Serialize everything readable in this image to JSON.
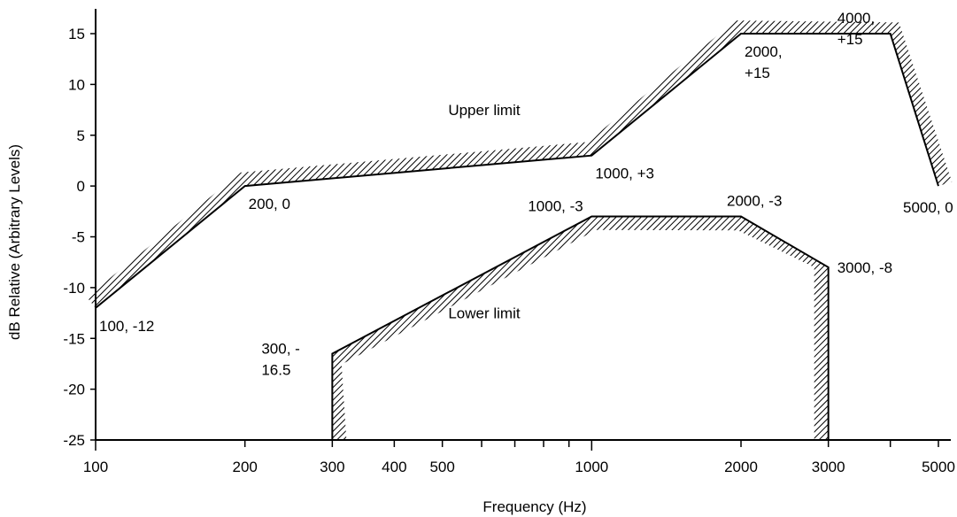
{
  "chart_data": {
    "type": "line",
    "title": "",
    "xlabel": "Frequency (Hz)",
    "ylabel": "dB Relative (Arbitrary Levels)",
    "x_scale": "log",
    "xlim": [
      100,
      5000
    ],
    "ylim": [
      -25,
      17
    ],
    "x_ticks": [
      100,
      200,
      300,
      400,
      500,
      600,
      700,
      800,
      900,
      1000,
      2000,
      3000,
      4000,
      5000
    ],
    "x_tick_labels": [
      {
        "value": 100,
        "label": "100"
      },
      {
        "value": 200,
        "label": "200"
      },
      {
        "value": 300,
        "label": "300"
      },
      {
        "value": 400,
        "label": "400"
      },
      {
        "value": 500,
        "label": "500"
      },
      {
        "value": 1000,
        "label": "1000"
      },
      {
        "value": 2000,
        "label": "2000"
      },
      {
        "value": 3000,
        "label": "3000"
      },
      {
        "value": 5000,
        "label": "5000"
      }
    ],
    "y_ticks": [
      15,
      10,
      5,
      0,
      -5,
      -10,
      -15,
      -20,
      -25
    ],
    "y_tick_labels": [
      "15",
      "10",
      "5",
      "0",
      "-5",
      "-10",
      "-15",
      "-20",
      "-25"
    ],
    "series": [
      {
        "name": "Upper limit",
        "hatch_side": "above",
        "points": [
          [
            100,
            -12
          ],
          [
            200,
            0
          ],
          [
            1000,
            3
          ],
          [
            2000,
            15
          ],
          [
            4000,
            15
          ],
          [
            5000,
            0
          ]
        ]
      },
      {
        "name": "Lower limit",
        "hatch_side": "below",
        "points": [
          [
            300,
            -25
          ],
          [
            300,
            -16.5
          ],
          [
            1000,
            -3
          ],
          [
            2000,
            -3
          ],
          [
            3000,
            -8
          ],
          [
            3000,
            -25
          ]
        ]
      }
    ],
    "annotations": [
      {
        "lines": [
          "100, -12"
        ],
        "x": 100,
        "y": -12,
        "anchor": "below-right"
      },
      {
        "lines": [
          "200, 0"
        ],
        "x": 200,
        "y": 0,
        "anchor": "below-right"
      },
      {
        "lines": [
          "1000, +3"
        ],
        "x": 1000,
        "y": 3,
        "anchor": "below-right"
      },
      {
        "lines": [
          "2000,",
          "+15"
        ],
        "x": 2000,
        "y": 15,
        "anchor": "below-right"
      },
      {
        "lines": [
          "4000,",
          "+15"
        ],
        "x": 4000,
        "y": 15,
        "anchor": "below-left"
      },
      {
        "lines": [
          "5000, 0"
        ],
        "x": 5000,
        "y": 0,
        "anchor": "below-center"
      },
      {
        "lines": [
          "1000, -3"
        ],
        "x": 1000,
        "y": -3,
        "anchor": "above-left"
      },
      {
        "lines": [
          "2000, -3"
        ],
        "x": 2000,
        "y": -3,
        "anchor": "above-right"
      },
      {
        "lines": [
          "3000, -8"
        ],
        "x": 3000,
        "y": -8,
        "anchor": "right"
      },
      {
        "lines": [
          "300, -",
          "16.5"
        ],
        "x": 300,
        "y": -16.5,
        "anchor": "left"
      },
      {
        "lines": [
          "Upper limit"
        ],
        "x": 1000,
        "y": 7,
        "anchor": "text-left-of"
      },
      {
        "lines": [
          "Lower limit"
        ],
        "x": 1000,
        "y": -13,
        "anchor": "text-left-of"
      }
    ],
    "grid": false,
    "legend": "none"
  },
  "colors": {
    "line": "#000000",
    "hatch": "#000000",
    "background": "#ffffff"
  }
}
